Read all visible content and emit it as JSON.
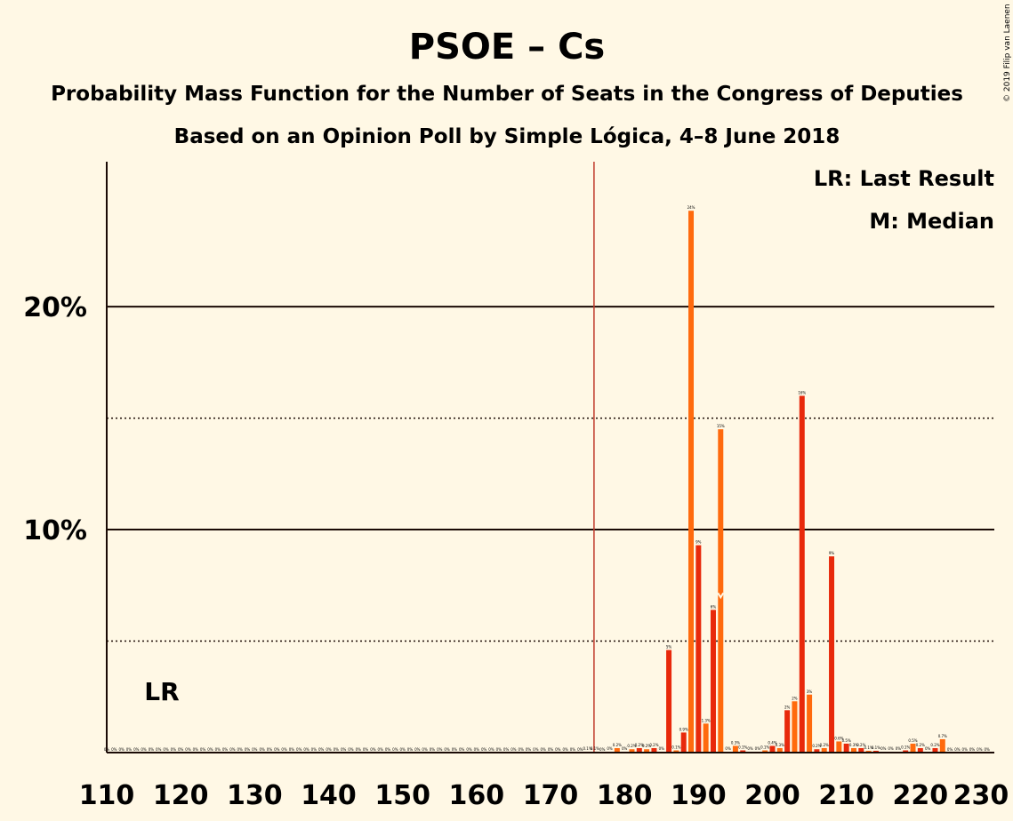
{
  "chart_data": {
    "type": "bar",
    "title": "PSOE – Cs",
    "subtitle": "Probability Mass Function for the Number of Seats in the Congress of Deputies",
    "subtitle2": "Based on an Opinion Poll by Simple Lógica, 4–8 June 2018",
    "copyright": "© 2019 Filip van Laenen",
    "legend": {
      "lr": "LR: Last Result",
      "m": "M: Median",
      "placement": "top-right"
    },
    "lr_label": "LR",
    "majority_line": 176,
    "median": 193,
    "xlim": [
      110,
      230
    ],
    "ylim": [
      0,
      0.265
    ],
    "x_ticks": [
      110,
      120,
      130,
      140,
      150,
      160,
      170,
      180,
      190,
      200,
      210,
      220,
      230
    ],
    "y_ticks": [
      {
        "value": 0.1,
        "label": "10%"
      },
      {
        "value": 0.2,
        "label": "20%"
      }
    ],
    "dotted_lines": [
      0.05,
      0.15
    ],
    "colors": {
      "even": "#E8290B",
      "odd": "#FF6A0D",
      "majority": "#C0392B",
      "grid": "#1a0a05"
    },
    "bars": [
      {
        "x": 175,
        "value": 0.0004,
        "label": "0.1%"
      },
      {
        "x": 176,
        "value": 0.0004,
        "label": "0.1%"
      },
      {
        "x": 177,
        "value": 0.0,
        "label": "0%"
      },
      {
        "x": 178,
        "value": 0.0004,
        "label": "0%"
      },
      {
        "x": 179,
        "value": 0.002,
        "label": "0.2%"
      },
      {
        "x": 180,
        "value": 0.0004,
        "label": "0%"
      },
      {
        "x": 181,
        "value": 0.0015,
        "label": "0.2%"
      },
      {
        "x": 182,
        "value": 0.002,
        "label": "0.2%"
      },
      {
        "x": 183,
        "value": 0.0015,
        "label": "0.2%"
      },
      {
        "x": 184,
        "value": 0.002,
        "label": "0.2%"
      },
      {
        "x": 185,
        "value": 0.0004,
        "label": "0%"
      },
      {
        "x": 186,
        "value": 0.046,
        "label": "5%"
      },
      {
        "x": 187,
        "value": 0.001,
        "label": "0.1%"
      },
      {
        "x": 188,
        "value": 0.009,
        "label": "0.9%"
      },
      {
        "x": 189,
        "value": 0.243,
        "label": "24%"
      },
      {
        "x": 190,
        "value": 0.093,
        "label": "9%"
      },
      {
        "x": 191,
        "value": 0.013,
        "label": "1.3%"
      },
      {
        "x": 192,
        "value": 0.064,
        "label": "6%"
      },
      {
        "x": 193,
        "value": 0.145,
        "label": "15%"
      },
      {
        "x": 194,
        "value": 0.0004,
        "label": "0%"
      },
      {
        "x": 195,
        "value": 0.003,
        "label": "0.3%"
      },
      {
        "x": 196,
        "value": 0.001,
        "label": "0.1%"
      },
      {
        "x": 197,
        "value": 0.0004,
        "label": "0%"
      },
      {
        "x": 198,
        "value": 0.0004,
        "label": "0%"
      },
      {
        "x": 199,
        "value": 0.001,
        "label": "0.1%"
      },
      {
        "x": 200,
        "value": 0.003,
        "label": "0.4%"
      },
      {
        "x": 201,
        "value": 0.002,
        "label": "0.3%"
      },
      {
        "x": 202,
        "value": 0.019,
        "label": "2%"
      },
      {
        "x": 203,
        "value": 0.023,
        "label": "2%"
      },
      {
        "x": 204,
        "value": 0.16,
        "label": "16%"
      },
      {
        "x": 205,
        "value": 0.026,
        "label": "3%"
      },
      {
        "x": 206,
        "value": 0.0015,
        "label": "0.2%"
      },
      {
        "x": 207,
        "value": 0.002,
        "label": "0.2%"
      },
      {
        "x": 208,
        "value": 0.088,
        "label": "9%"
      },
      {
        "x": 209,
        "value": 0.005,
        "label": "0.6%"
      },
      {
        "x": 210,
        "value": 0.004,
        "label": "0.5%"
      },
      {
        "x": 211,
        "value": 0.002,
        "label": "0.3%"
      },
      {
        "x": 212,
        "value": 0.002,
        "label": "0.2%"
      },
      {
        "x": 213,
        "value": 0.0008,
        "label": "0.1%"
      },
      {
        "x": 214,
        "value": 0.0008,
        "label": "0.1%"
      },
      {
        "x": 215,
        "value": 0.0004,
        "label": "0%"
      },
      {
        "x": 216,
        "value": 0.0004,
        "label": "0%"
      },
      {
        "x": 217,
        "value": 0.0004,
        "label": "0%"
      },
      {
        "x": 218,
        "value": 0.001,
        "label": "0.1%"
      },
      {
        "x": 219,
        "value": 0.004,
        "label": "0.5%"
      },
      {
        "x": 220,
        "value": 0.002,
        "label": "0.2%"
      },
      {
        "x": 221,
        "value": 0.0004,
        "label": "0%"
      },
      {
        "x": 222,
        "value": 0.002,
        "label": "0.2%"
      },
      {
        "x": 223,
        "value": 0.006,
        "label": "0.7%"
      },
      {
        "x": 224,
        "value": 0.0,
        "label": "0%"
      },
      {
        "x": 225,
        "value": 0.0,
        "label": "0%"
      },
      {
        "x": 226,
        "value": 0.0,
        "label": "0%"
      },
      {
        "x": 227,
        "value": 0.0,
        "label": "0%"
      },
      {
        "x": 228,
        "value": 0.0,
        "label": "0%"
      },
      {
        "x": 229,
        "value": 0.0,
        "label": "0%"
      }
    ]
  }
}
